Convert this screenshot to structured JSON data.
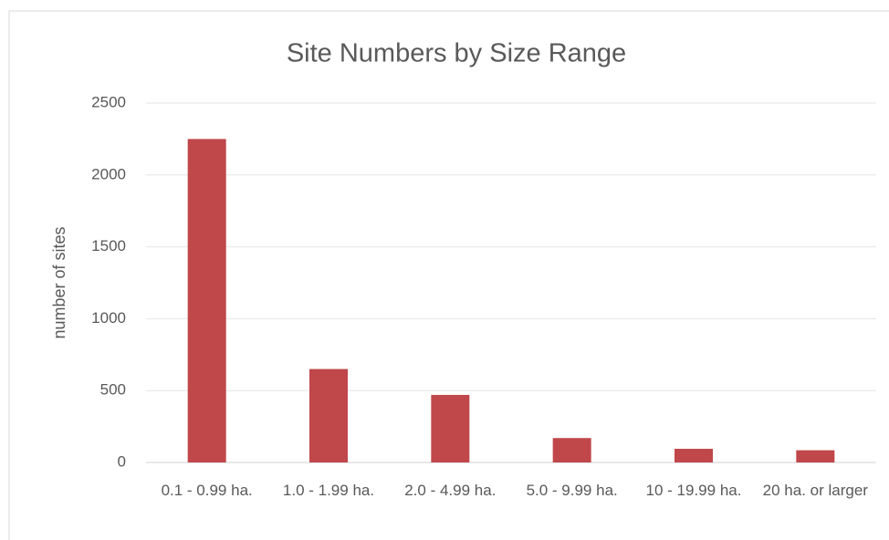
{
  "chart_data": {
    "type": "bar",
    "title": "Site Numbers by Size Range",
    "y_label": "number of sites",
    "categories": [
      "0.1 - 0.99 ha.",
      "1.0  - 1.99 ha.",
      "2.0 - 4.99 ha.",
      "5.0 - 9.99 ha.",
      "10 - 19.99 ha.",
      "20 ha. or larger"
    ],
    "values": [
      2250,
      650,
      470,
      170,
      95,
      85
    ],
    "color": "#c0474a",
    "ylim": [
      0,
      2500
    ],
    "yticks": [
      0,
      500,
      1000,
      1500,
      2000,
      2500
    ],
    "grid": true
  }
}
